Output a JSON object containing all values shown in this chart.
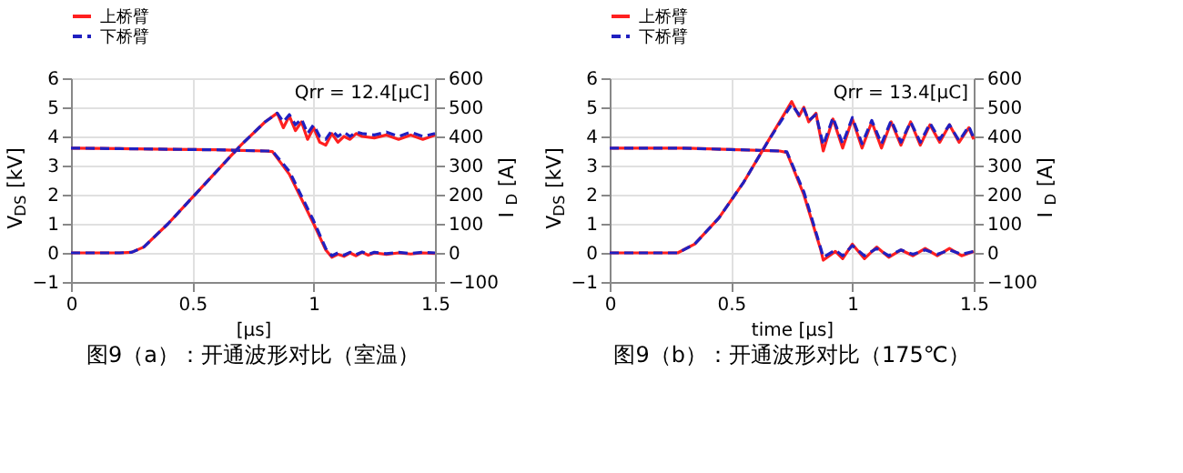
{
  "chart_data": [
    {
      "type": "line",
      "xlabel": "[μs]",
      "ylabel": "V$_{DS}$ [kV]",
      "y2label": "I$_{D}$ [A]",
      "annotations": [
        "Qrr = 12.4[μC]",
        "图9（a）：开通波形对比（室温）"
      ],
      "xlim": [
        0,
        1.5
      ],
      "xticks": [
        0,
        0.5,
        1,
        1.5
      ],
      "ylim": [
        -1,
        6
      ],
      "yticks": [
        -1,
        0,
        1,
        2,
        3,
        4,
        5,
        6
      ],
      "y2lim": [
        -100,
        600
      ],
      "y2ticks": [
        -100,
        0,
        100,
        200,
        300,
        400,
        500,
        600
      ],
      "grid": true,
      "legend": "top left",
      "series": [
        {
          "name": "上桥臂",
          "color": "#ff2020",
          "line_style": "solid",
          "x": [
            0,
            0.2,
            0.4,
            0.6,
            0.8,
            0.83,
            0.9,
            1.0,
            1.05,
            1.075,
            1.1,
            1.125,
            1.15,
            1.175,
            1.2,
            1.225,
            1.25,
            1.3,
            1.35,
            1.4,
            1.45,
            1.5
          ],
          "values": [
            3.6,
            3.58,
            3.56,
            3.54,
            3.5,
            3.48,
            2.7,
            1.0,
            0.1,
            -0.15,
            -0.05,
            -0.12,
            0.0,
            -0.1,
            0.02,
            -0.08,
            0.0,
            -0.05,
            0.0,
            -0.04,
            0.0,
            -0.02
          ]
        },
        {
          "name": "下桥臂",
          "color": "#2020c0",
          "line_style": "dashed",
          "x": [
            0,
            0.2,
            0.4,
            0.6,
            0.8,
            0.83,
            0.9,
            1.0,
            1.05,
            1.075,
            1.1,
            1.125,
            1.15,
            1.175,
            1.2,
            1.225,
            1.25,
            1.3,
            1.35,
            1.4,
            1.45,
            1.5
          ],
          "values": [
            3.6,
            3.58,
            3.56,
            3.54,
            3.5,
            3.5,
            2.8,
            1.1,
            0.15,
            -0.1,
            0.0,
            -0.08,
            0.02,
            -0.06,
            0.03,
            -0.05,
            0.02,
            -0.03,
            0.02,
            -0.02,
            0.02,
            0.0
          ]
        },
        {
          "color": "#ff2020",
          "line_style": "solid",
          "axis": "y2",
          "x": [
            0,
            0.2,
            0.25,
            0.3,
            0.4,
            0.5,
            0.6,
            0.7,
            0.8,
            0.85,
            0.875,
            0.9,
            0.925,
            0.95,
            0.975,
            1.0,
            1.025,
            1.05,
            1.075,
            1.1,
            1.125,
            1.15,
            1.175,
            1.2,
            1.25,
            1.3,
            1.35,
            1.4,
            1.45,
            1.5
          ],
          "values": [
            0,
            0,
            2,
            20,
            100,
            190,
            280,
            370,
            450,
            480,
            430,
            470,
            420,
            450,
            390,
            430,
            380,
            370,
            410,
            380,
            400,
            390,
            410,
            400,
            395,
            405,
            390,
            405,
            390,
            405
          ]
        },
        {
          "color": "#2020c0",
          "line_style": "dashed",
          "axis": "y2",
          "x": [
            0,
            0.2,
            0.25,
            0.3,
            0.4,
            0.5,
            0.6,
            0.7,
            0.8,
            0.85,
            0.875,
            0.9,
            0.925,
            0.95,
            0.975,
            1.0,
            1.025,
            1.05,
            1.075,
            1.1,
            1.125,
            1.15,
            1.175,
            1.2,
            1.25,
            1.3,
            1.35,
            1.4,
            1.45,
            1.5
          ],
          "values": [
            0,
            0,
            2,
            20,
            100,
            190,
            280,
            370,
            450,
            480,
            450,
            475,
            440,
            460,
            410,
            440,
            400,
            390,
            420,
            400,
            415,
            400,
            415,
            410,
            405,
            415,
            400,
            415,
            400,
            410
          ]
        }
      ]
    },
    {
      "type": "line",
      "xlabel": "time [μs]",
      "ylabel": "V$_{DS}$ [kV]",
      "y2label": "I$_{D}$ [A]",
      "annotations": [
        "Qrr = 13.4[μC]",
        "图9（b）：开通波形对比（175℃）"
      ],
      "xlim": [
        0,
        1.5
      ],
      "xticks": [
        0,
        0.5,
        1,
        1.5
      ],
      "ylim": [
        -1,
        6
      ],
      "yticks": [
        -1,
        0,
        1,
        2,
        3,
        4,
        5,
        6
      ],
      "y2lim": [
        -100,
        600
      ],
      "y2ticks": [
        -100,
        0,
        100,
        200,
        300,
        400,
        500,
        600
      ],
      "grid": true,
      "legend": "top left",
      "series": [
        {
          "name": "上桥臂",
          "color": "#ff2020",
          "line_style": "solid",
          "x": [
            0,
            0.3,
            0.5,
            0.7,
            0.73,
            0.8,
            0.87,
            0.88,
            0.93,
            0.96,
            1.0,
            1.05,
            1.1,
            1.15,
            1.2,
            1.25,
            1.3,
            1.35,
            1.4,
            1.45,
            1.5
          ],
          "values": [
            3.6,
            3.6,
            3.55,
            3.5,
            3.45,
            2.0,
            0.1,
            -0.25,
            0.05,
            -0.2,
            0.3,
            -0.2,
            0.2,
            -0.15,
            0.1,
            -0.1,
            0.15,
            -0.1,
            0.15,
            -0.1,
            0.05
          ]
        },
        {
          "name": "下桥臂",
          "color": "#2020c0",
          "line_style": "dashed",
          "x": [
            0,
            0.3,
            0.5,
            0.7,
            0.73,
            0.8,
            0.87,
            0.88,
            0.93,
            0.96,
            1.0,
            1.05,
            1.1,
            1.15,
            1.2,
            1.25,
            1.3,
            1.35,
            1.4,
            1.45,
            1.5
          ],
          "values": [
            3.6,
            3.6,
            3.55,
            3.5,
            3.47,
            2.1,
            0.15,
            -0.15,
            0.1,
            -0.1,
            0.25,
            -0.1,
            0.15,
            -0.1,
            0.1,
            -0.05,
            0.1,
            -0.05,
            0.1,
            -0.05,
            0.05
          ]
        },
        {
          "color": "#ff2020",
          "line_style": "solid",
          "axis": "y2",
          "x": [
            0,
            0.28,
            0.35,
            0.45,
            0.55,
            0.65,
            0.75,
            0.78,
            0.8,
            0.82,
            0.85,
            0.88,
            0.92,
            0.96,
            1.0,
            1.04,
            1.08,
            1.12,
            1.16,
            1.2,
            1.24,
            1.28,
            1.32,
            1.36,
            1.4,
            1.44,
            1.48,
            1.5
          ],
          "values": [
            0,
            0,
            30,
            120,
            240,
            380,
            520,
            470,
            500,
            450,
            480,
            350,
            460,
            360,
            460,
            360,
            450,
            360,
            450,
            370,
            450,
            370,
            440,
            380,
            440,
            380,
            430,
            390
          ]
        },
        {
          "color": "#2020c0",
          "line_style": "dashed",
          "axis": "y2",
          "x": [
            0,
            0.28,
            0.35,
            0.45,
            0.55,
            0.65,
            0.75,
            0.78,
            0.8,
            0.82,
            0.85,
            0.88,
            0.92,
            0.96,
            1.0,
            1.04,
            1.08,
            1.12,
            1.16,
            1.2,
            1.24,
            1.28,
            1.32,
            1.36,
            1.4,
            1.44,
            1.48,
            1.5
          ],
          "values": [
            0,
            0,
            30,
            120,
            240,
            380,
            510,
            475,
            495,
            455,
            475,
            370,
            465,
            375,
            465,
            375,
            455,
            375,
            455,
            380,
            450,
            380,
            445,
            390,
            440,
            385,
            435,
            395
          ]
        }
      ]
    }
  ]
}
